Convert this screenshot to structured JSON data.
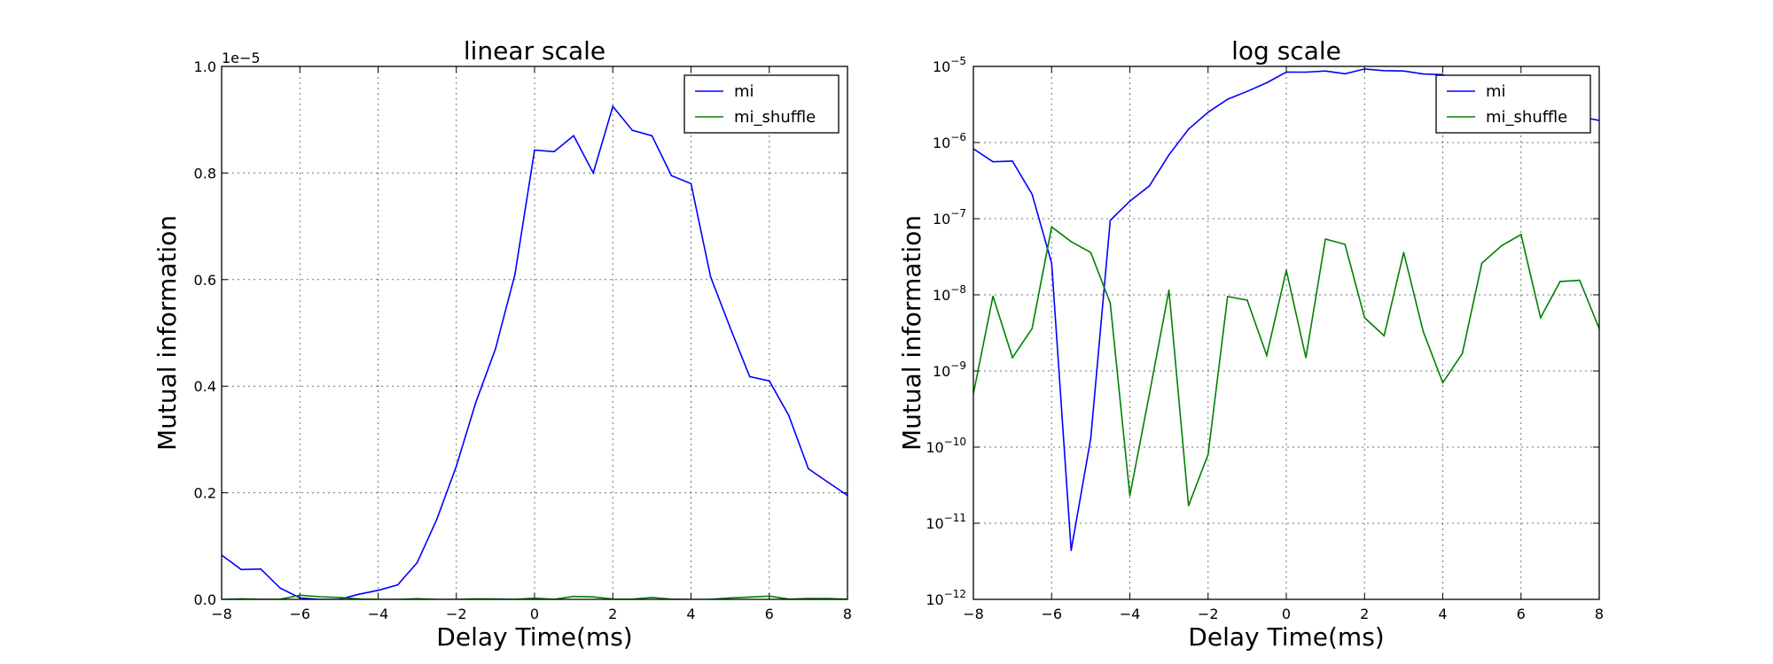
{
  "chart_data": [
    {
      "type": "line",
      "title": "linear scale",
      "xlabel": "Delay Time(ms)",
      "ylabel": "Mutual information",
      "yscale": "linear",
      "offset_text": "1e−5",
      "xlim": [
        -8,
        8
      ],
      "ylim": [
        0,
        1e-05
      ],
      "xticks": [
        -8,
        -6,
        -4,
        -2,
        0,
        2,
        4,
        6,
        8
      ],
      "xtick_labels": [
        "−8",
        "−6",
        "−4",
        "−2",
        "0",
        "2",
        "4",
        "6",
        "8"
      ],
      "yticks": [
        0,
        2e-06,
        4e-06,
        6e-06,
        8e-06,
        1e-05
      ],
      "ytick_labels": [
        "0.0",
        "0.2",
        "0.4",
        "0.6",
        "0.8",
        "1.0"
      ],
      "grid": true,
      "legend_position": "top-right",
      "x": [
        -8,
        -7.5,
        -7,
        -6.5,
        -6,
        -5.5,
        -5,
        -4.5,
        -4,
        -3.5,
        -3,
        -2.5,
        -2,
        -1.5,
        -1,
        -0.5,
        0,
        0.5,
        1,
        1.5,
        2,
        2.5,
        3,
        3.5,
        4,
        4.5,
        5,
        5.5,
        6,
        6.5,
        7,
        7.5,
        8
      ],
      "series": [
        {
          "name": "mi",
          "color": "#0000ff",
          "values": [
            8.3e-07,
            5.6e-07,
            5.7e-07,
            2.1e-07,
            2.6e-08,
            4.4e-12,
            1.3e-10,
            9.5e-08,
            1.7e-07,
            2.7e-07,
            6.9e-07,
            1.5e-06,
            2.5e-06,
            3.7e-06,
            4.7e-06,
            6.1e-06,
            8.43e-06,
            8.4e-06,
            8.7e-06,
            8e-06,
            9.25e-06,
            8.8e-06,
            8.7e-06,
            7.95e-06,
            7.8e-06,
            6.05e-06,
            5.1e-06,
            4.18e-06,
            4.1e-06,
            3.45e-06,
            2.45e-06,
            2.2e-06,
            1.95e-06
          ]
        },
        {
          "name": "mi_shuffle",
          "color": "#008000",
          "values": [
            5e-10,
            9.6e-09,
            1.5e-09,
            3.6e-09,
            7.8e-08,
            5e-08,
            3.6e-08,
            7.8e-09,
            2.3e-11,
            5e-10,
            1.15e-08,
            1.7e-11,
            8e-11,
            9.5e-09,
            8.5e-09,
            1.6e-09,
            2.1e-08,
            1.5e-09,
            5.4e-08,
            4.6e-08,
            5e-09,
            2.9e-09,
            3.6e-08,
            3.3e-09,
            7e-10,
            1.7e-09,
            2.6e-08,
            4.4e-08,
            6.2e-08,
            5e-09,
            1.5e-08,
            1.55e-08,
            3.6e-09
          ]
        }
      ]
    },
    {
      "type": "line",
      "title": "log scale",
      "xlabel": "Delay Time(ms)",
      "ylabel": "Mutual information",
      "yscale": "log",
      "xlim": [
        -8,
        8
      ],
      "ylim": [
        1e-12,
        1e-05
      ],
      "xticks": [
        -8,
        -6,
        -4,
        -2,
        0,
        2,
        4,
        6,
        8
      ],
      "xtick_labels": [
        "−8",
        "−6",
        "−4",
        "−2",
        "0",
        "2",
        "4",
        "6",
        "8"
      ],
      "ytick_exponents": [
        -12,
        -11,
        -10,
        -9,
        -8,
        -7,
        -6,
        -5
      ],
      "ytick_base": "10",
      "grid": true,
      "legend_position": "top-right",
      "x": [
        -8,
        -7.5,
        -7,
        -6.5,
        -6,
        -5.5,
        -5,
        -4.5,
        -4,
        -3.5,
        -3,
        -2.5,
        -2,
        -1.5,
        -1,
        -0.5,
        0,
        0.5,
        1,
        1.5,
        2,
        2.5,
        3,
        3.5,
        4,
        4.5,
        5,
        5.5,
        6,
        6.5,
        7,
        7.5,
        8
      ],
      "series": [
        {
          "name": "mi",
          "color": "#0000ff",
          "values": [
            8.3e-07,
            5.6e-07,
            5.7e-07,
            2.1e-07,
            2.6e-08,
            4.4e-12,
            1.3e-10,
            9.5e-08,
            1.7e-07,
            2.7e-07,
            6.9e-07,
            1.5e-06,
            2.5e-06,
            3.7e-06,
            4.7e-06,
            6.1e-06,
            8.43e-06,
            8.4e-06,
            8.7e-06,
            8e-06,
            9.25e-06,
            8.8e-06,
            8.7e-06,
            7.95e-06,
            7.8e-06,
            6.05e-06,
            5.1e-06,
            4.18e-06,
            4.1e-06,
            3.45e-06,
            2.45e-06,
            2.2e-06,
            1.95e-06
          ]
        },
        {
          "name": "mi_shuffle",
          "color": "#008000",
          "values": [
            5e-10,
            9.6e-09,
            1.5e-09,
            3.6e-09,
            7.8e-08,
            5e-08,
            3.6e-08,
            7.8e-09,
            2.3e-11,
            5e-10,
            1.15e-08,
            1.7e-11,
            8e-11,
            9.5e-09,
            8.5e-09,
            1.6e-09,
            2.1e-08,
            1.5e-09,
            5.4e-08,
            4.6e-08,
            5e-09,
            2.9e-09,
            3.6e-08,
            3.3e-09,
            7e-10,
            1.7e-09,
            2.6e-08,
            4.4e-08,
            6.2e-08,
            5e-09,
            1.5e-08,
            1.55e-08,
            3.6e-09
          ]
        }
      ]
    }
  ]
}
